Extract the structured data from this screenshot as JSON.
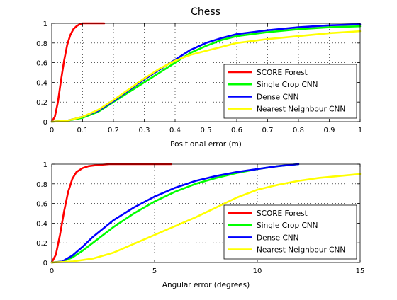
{
  "figure": {
    "title": "Chess"
  },
  "chart_data": [
    {
      "type": "line",
      "title": "Chess",
      "xlabel": "Positional error (m)",
      "ylabel": "",
      "xlim": [
        0,
        1
      ],
      "ylim": [
        0,
        1
      ],
      "xticks": [
        "0",
        "0.1",
        "0.2",
        "0.3",
        "0.4",
        "0.5",
        "0.6",
        "0.7",
        "0.8",
        "0.9",
        "1"
      ],
      "yticks": [
        "0",
        "0.2",
        "0.4",
        "0.6",
        "0.8",
        "1"
      ],
      "grid": true,
      "legend_position": "lower-right",
      "series": [
        {
          "name": "SCORE Forest",
          "color": "#ff0000",
          "x": [
            0,
            0.01,
            0.02,
            0.03,
            0.04,
            0.05,
            0.06,
            0.07,
            0.08,
            0.09,
            0.1,
            0.12,
            0.14,
            0.17
          ],
          "y": [
            0,
            0.05,
            0.2,
            0.42,
            0.62,
            0.78,
            0.88,
            0.94,
            0.97,
            0.99,
            1,
            1,
            1,
            1
          ]
        },
        {
          "name": "Single Crop CNN",
          "color": "#00ff00",
          "x": [
            0,
            0.05,
            0.1,
            0.15,
            0.2,
            0.25,
            0.3,
            0.35,
            0.4,
            0.45,
            0.5,
            0.55,
            0.6,
            0.7,
            0.8,
            0.9,
            1
          ],
          "y": [
            0,
            0.01,
            0.04,
            0.1,
            0.2,
            0.3,
            0.4,
            0.5,
            0.6,
            0.7,
            0.77,
            0.83,
            0.87,
            0.91,
            0.94,
            0.96,
            0.97
          ]
        },
        {
          "name": "Dense CNN",
          "color": "#0000ff",
          "x": [
            0,
            0.05,
            0.1,
            0.15,
            0.2,
            0.25,
            0.3,
            0.35,
            0.4,
            0.45,
            0.5,
            0.55,
            0.6,
            0.7,
            0.8,
            0.9,
            1
          ],
          "y": [
            0,
            0.01,
            0.05,
            0.11,
            0.21,
            0.32,
            0.43,
            0.53,
            0.63,
            0.73,
            0.8,
            0.85,
            0.89,
            0.93,
            0.96,
            0.98,
            0.99
          ]
        },
        {
          "name": "Nearest Neighbour CNN",
          "color": "#ffff00",
          "x": [
            0,
            0.05,
            0.1,
            0.15,
            0.2,
            0.25,
            0.3,
            0.35,
            0.4,
            0.45,
            0.5,
            0.55,
            0.6,
            0.7,
            0.8,
            0.9,
            1
          ],
          "y": [
            0,
            0.01,
            0.05,
            0.12,
            0.22,
            0.33,
            0.44,
            0.54,
            0.62,
            0.68,
            0.72,
            0.76,
            0.8,
            0.84,
            0.87,
            0.9,
            0.92
          ]
        }
      ]
    },
    {
      "type": "line",
      "title": "",
      "xlabel": "Angular error (degrees)",
      "ylabel": "",
      "xlim": [
        0,
        15
      ],
      "ylim": [
        0,
        1
      ],
      "xticks": [
        "0",
        "5",
        "10",
        "15"
      ],
      "yticks": [
        "0",
        "0.2",
        "0.4",
        "0.6",
        "0.8",
        "1"
      ],
      "grid": true,
      "legend_position": "lower-right",
      "series": [
        {
          "name": "SCORE Forest",
          "color": "#ff0000",
          "x": [
            0,
            0.2,
            0.4,
            0.6,
            0.8,
            1.0,
            1.2,
            1.5,
            1.8,
            2.2,
            2.8,
            4,
            5.8
          ],
          "y": [
            0,
            0.08,
            0.28,
            0.52,
            0.72,
            0.85,
            0.92,
            0.96,
            0.98,
            0.99,
            1,
            1,
            1
          ]
        },
        {
          "name": "Single Crop CNN",
          "color": "#00ff00",
          "x": [
            0,
            0.5,
            1,
            1.5,
            2,
            3,
            4,
            5,
            6,
            7,
            8,
            9,
            10,
            11,
            12
          ],
          "y": [
            0,
            0.01,
            0.05,
            0.12,
            0.2,
            0.36,
            0.5,
            0.62,
            0.72,
            0.8,
            0.86,
            0.91,
            0.95,
            0.98,
            1
          ]
        },
        {
          "name": "Dense CNN",
          "color": "#0000ff",
          "x": [
            0,
            0.5,
            1,
            1.5,
            2,
            3,
            4,
            5,
            6,
            7,
            8,
            9,
            10,
            11,
            12
          ],
          "y": [
            0,
            0.01,
            0.07,
            0.16,
            0.26,
            0.43,
            0.56,
            0.67,
            0.76,
            0.83,
            0.88,
            0.92,
            0.95,
            0.98,
            1
          ]
        },
        {
          "name": "Nearest Neighbour CNN",
          "color": "#ffff00",
          "x": [
            0,
            1,
            2,
            3,
            4,
            5,
            6,
            7,
            8,
            9,
            10,
            11,
            12,
            13,
            14,
            15
          ],
          "y": [
            0,
            0.01,
            0.04,
            0.1,
            0.19,
            0.28,
            0.37,
            0.46,
            0.56,
            0.66,
            0.74,
            0.79,
            0.83,
            0.86,
            0.88,
            0.9
          ]
        }
      ]
    }
  ]
}
